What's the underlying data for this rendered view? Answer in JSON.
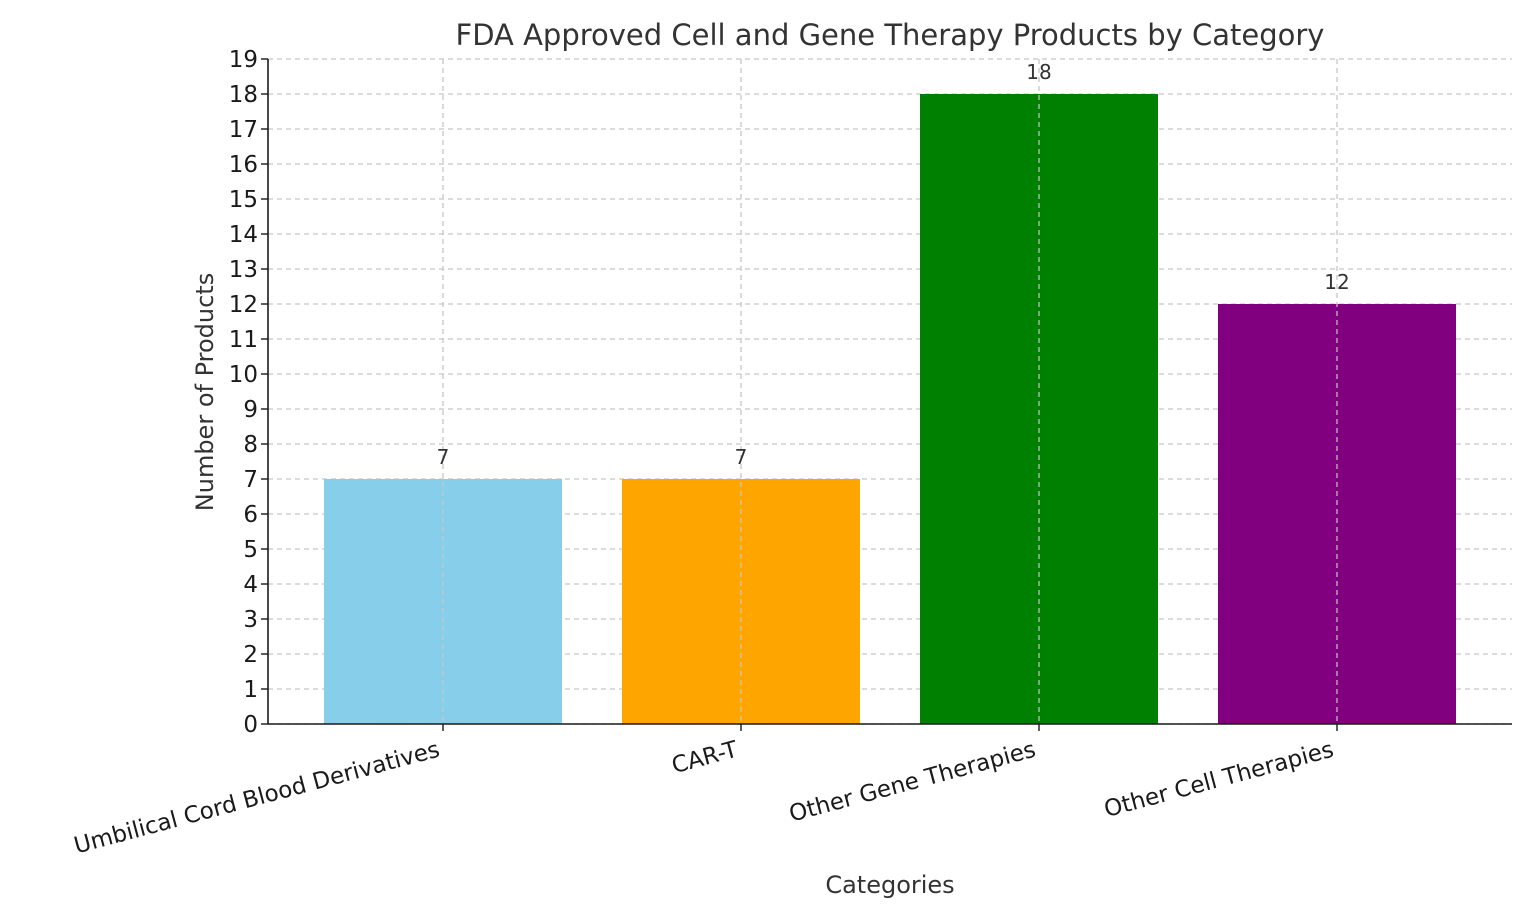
{
  "chart_data": {
    "type": "bar",
    "title": "FDA Approved Cell and Gene Therapy Products by Category",
    "xlabel": "Categories",
    "ylabel": "Number of Products",
    "categories": [
      "Umbilical Cord Blood Derivatives",
      "CAR-T",
      "Other Gene Therapies",
      "Other Cell Therapies"
    ],
    "values": [
      7,
      7,
      18,
      12
    ],
    "colors": [
      "#87ceeb",
      "#ffa500",
      "#008000",
      "#800080"
    ],
    "ylim": [
      0,
      19
    ],
    "yticks": [
      0,
      1,
      2,
      3,
      4,
      5,
      6,
      7,
      8,
      9,
      10,
      11,
      12,
      13,
      14,
      15,
      16,
      17,
      18,
      19
    ],
    "grid": true,
    "data_labels": [
      "7",
      "7",
      "18",
      "12"
    ]
  }
}
